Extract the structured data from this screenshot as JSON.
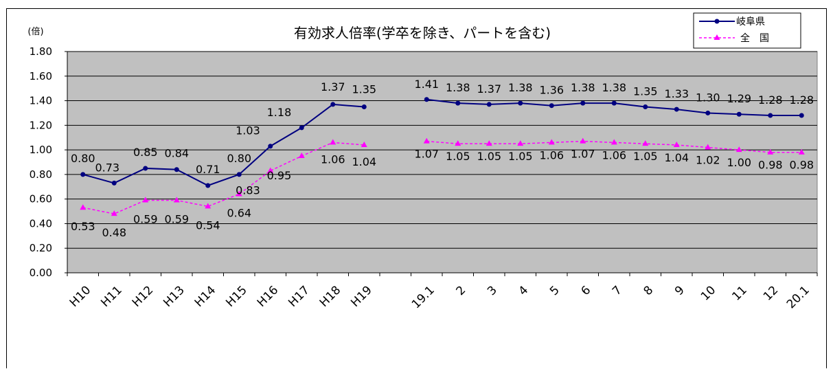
{
  "chart_data": {
    "type": "line",
    "title": "有効求人倍率(学卒を除き、パートを含む)",
    "unit_label": "(倍)",
    "ylim": [
      0,
      1.8
    ],
    "yticks": [
      "0.00",
      "0.20",
      "0.40",
      "0.60",
      "0.80",
      "1.00",
      "1.20",
      "1.40",
      "1.60",
      "1.80"
    ],
    "grid": true,
    "plot_background": "#c0c0c0",
    "legend_position": "top-right",
    "categories": [
      "H10",
      "H11",
      "H12",
      "H13",
      "H14",
      "H15",
      "H16",
      "H17",
      "H18",
      "H19",
      "",
      "19.1",
      "2",
      "3",
      "4",
      "5",
      "6",
      "7",
      "8",
      "9",
      "10",
      "11",
      "12",
      "20.1"
    ],
    "series": [
      {
        "name": "岐阜県",
        "color": "#000080",
        "line_style": "solid",
        "marker": "circle",
        "values": [
          0.8,
          0.73,
          0.85,
          0.84,
          0.71,
          0.8,
          1.03,
          1.18,
          1.37,
          1.35,
          null,
          1.41,
          1.38,
          1.37,
          1.38,
          1.36,
          1.38,
          1.38,
          1.35,
          1.33,
          1.3,
          1.29,
          1.28,
          1.28
        ],
        "labels": [
          "0.80",
          "0.73",
          "0.85",
          "0.84",
          "0.71",
          "0.80",
          "1.03",
          "1.18",
          "1.37",
          "1.35",
          "",
          "1.41",
          "1.38",
          "1.37",
          "1.38",
          "1.36",
          "1.38",
          "1.38",
          "1.35",
          "1.33",
          "1.30",
          "1.29",
          "1.28",
          "1.28"
        ]
      },
      {
        "name": "全　国",
        "color": "#ff00ff",
        "line_style": "dashed",
        "marker": "triangle",
        "values": [
          0.53,
          0.48,
          0.59,
          0.59,
          0.54,
          0.64,
          0.83,
          0.95,
          1.06,
          1.04,
          null,
          1.07,
          1.05,
          1.05,
          1.05,
          1.06,
          1.07,
          1.06,
          1.05,
          1.04,
          1.02,
          1.0,
          0.98,
          0.98
        ],
        "labels": [
          "0.53",
          "0.48",
          "0.59",
          "0.59",
          "0.54",
          "0.64",
          "0.83",
          "0.95",
          "1.06",
          "1.04",
          "",
          "1.07",
          "1.05",
          "1.05",
          "1.05",
          "1.06",
          "1.07",
          "1.06",
          "1.05",
          "1.04",
          "1.02",
          "1.00",
          "0.98",
          "0.98"
        ]
      }
    ]
  }
}
